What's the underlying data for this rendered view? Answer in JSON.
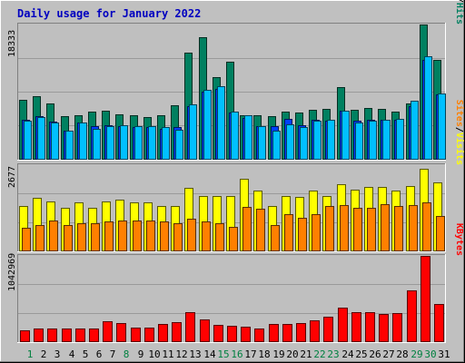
{
  "chart_data": {
    "type": "bar",
    "title": "Daily usage for January 2022",
    "colors": {
      "background": "#c0c0c0",
      "plot": "#bfbfbf",
      "title": "#0000c0",
      "hits": "#008060",
      "files": "#0040ff",
      "pages": "#00c0ff",
      "visits": "#ffff00",
      "sites": "#ff8000",
      "kbytes": "#ff0000",
      "weekday_label": "#000000",
      "weekend_label": "#008040"
    },
    "categories": [
      "1",
      "2",
      "3",
      "4",
      "5",
      "6",
      "7",
      "8",
      "9",
      "10",
      "11",
      "12",
      "13",
      "14",
      "15",
      "16",
      "17",
      "18",
      "19",
      "20",
      "21",
      "22",
      "23",
      "24",
      "25",
      "26",
      "27",
      "28",
      "29",
      "30",
      "31"
    ],
    "weekend_days": [
      1,
      8,
      15,
      16,
      22,
      23,
      29,
      30
    ],
    "panels": [
      {
        "name": "hits-files-pages",
        "ymax_label": "18333",
        "ymax": 18333,
        "series": [
          {
            "name": "Hits",
            "color": "#008060",
            "values": [
              8000,
              8600,
              7500,
              5800,
              5900,
              6400,
              6600,
              6100,
              6000,
              5700,
              6000,
              7300,
              14500,
              16600,
              11200,
              13300,
              6000,
              5900,
              5800,
              6400,
              6300,
              6700,
              6800,
              9800,
              6700,
              6900,
              6800,
              6500,
              7600,
              18333,
              13500
            ]
          },
          {
            "name": "Files",
            "color": "#0040ff",
            "values": [
              5300,
              5800,
              5100,
              3800,
              5000,
              4400,
              4600,
              4500,
              4300,
              4300,
              4100,
              4300,
              7200,
              9200,
              9600,
              6300,
              5600,
              4400,
              4400,
              5400,
              4600,
              5300,
              5200,
              6600,
              5200,
              5300,
              5300,
              5300,
              7200,
              13500,
              8800
            ]
          },
          {
            "name": "Pages",
            "color": "#00c0ff",
            "values": [
              5200,
              5700,
              4900,
              3800,
              4900,
              4100,
              4400,
              4600,
              4500,
              4500,
              4300,
              4000,
              7400,
              9400,
              9900,
              6500,
              5900,
              4500,
              3900,
              4700,
              4300,
              5200,
              5300,
              6600,
              5000,
              5200,
              5300,
              5400,
              7900,
              14000,
              8900
            ]
          }
        ]
      },
      {
        "name": "visits-sites",
        "ymax_label": "2677",
        "ymax": 2677,
        "series": [
          {
            "name": "Visits",
            "color": "#ffff00",
            "values": [
              1400,
              1650,
              1550,
              1350,
              1500,
              1350,
              1550,
              1600,
              1500,
              1500,
              1400,
              1400,
              1960,
              1700,
              1700,
              1700,
              2250,
              1880,
              1400,
              1700,
              1690,
              1880,
              1700,
              2070,
              1900,
              2000,
              2000,
              1870,
              2020,
              2560,
              2150
            ]
          },
          {
            "name": "Sites",
            "color": "#ff8000",
            "values": [
              700,
              800,
              950,
              800,
              850,
              850,
              900,
              950,
              950,
              950,
              900,
              850,
              1000,
              900,
              850,
              750,
              1380,
              1300,
              800,
              1150,
              1020,
              1150,
              1400,
              1430,
              1330,
              1330,
              1450,
              1400,
              1420,
              1500,
              1090
            ]
          }
        ]
      },
      {
        "name": "kbytes",
        "ymax_label": "1042969",
        "ymax": 1042969,
        "series": [
          {
            "name": "KBytes",
            "color": "#ff0000",
            "values": [
              130000,
              160000,
              160000,
              160000,
              150000,
              150000,
              240000,
              220000,
              170000,
              170000,
              210000,
              230000,
              360000,
              270000,
              200000,
              190000,
              180000,
              150000,
              210000,
              210000,
              220000,
              260000,
              300000,
              410000,
              360000,
              350000,
              330000,
              340000,
              620000,
              1042969,
              450000
            ]
          }
        ]
      }
    ],
    "legend_right": [
      {
        "panel": "hits-files-pages",
        "parts": [
          {
            "text": "Pages",
            "color": "#00c0ff"
          },
          {
            "text": "/",
            "color": "#000000"
          },
          {
            "text": "Files",
            "color": "#0040ff"
          },
          {
            "text": "/",
            "color": "#000000"
          },
          {
            "text": "Hits",
            "color": "#008060"
          }
        ]
      },
      {
        "panel": "visits-sites",
        "parts": [
          {
            "text": "Sites",
            "color": "#ff8000"
          },
          {
            "text": "/",
            "color": "#000000"
          },
          {
            "text": "Visits",
            "color": "#ffff00"
          }
        ]
      },
      {
        "panel": "kbytes",
        "parts": [
          {
            "text": "KBytes",
            "color": "#ff0000"
          }
        ]
      }
    ],
    "grid": true,
    "legend_position": "right"
  }
}
